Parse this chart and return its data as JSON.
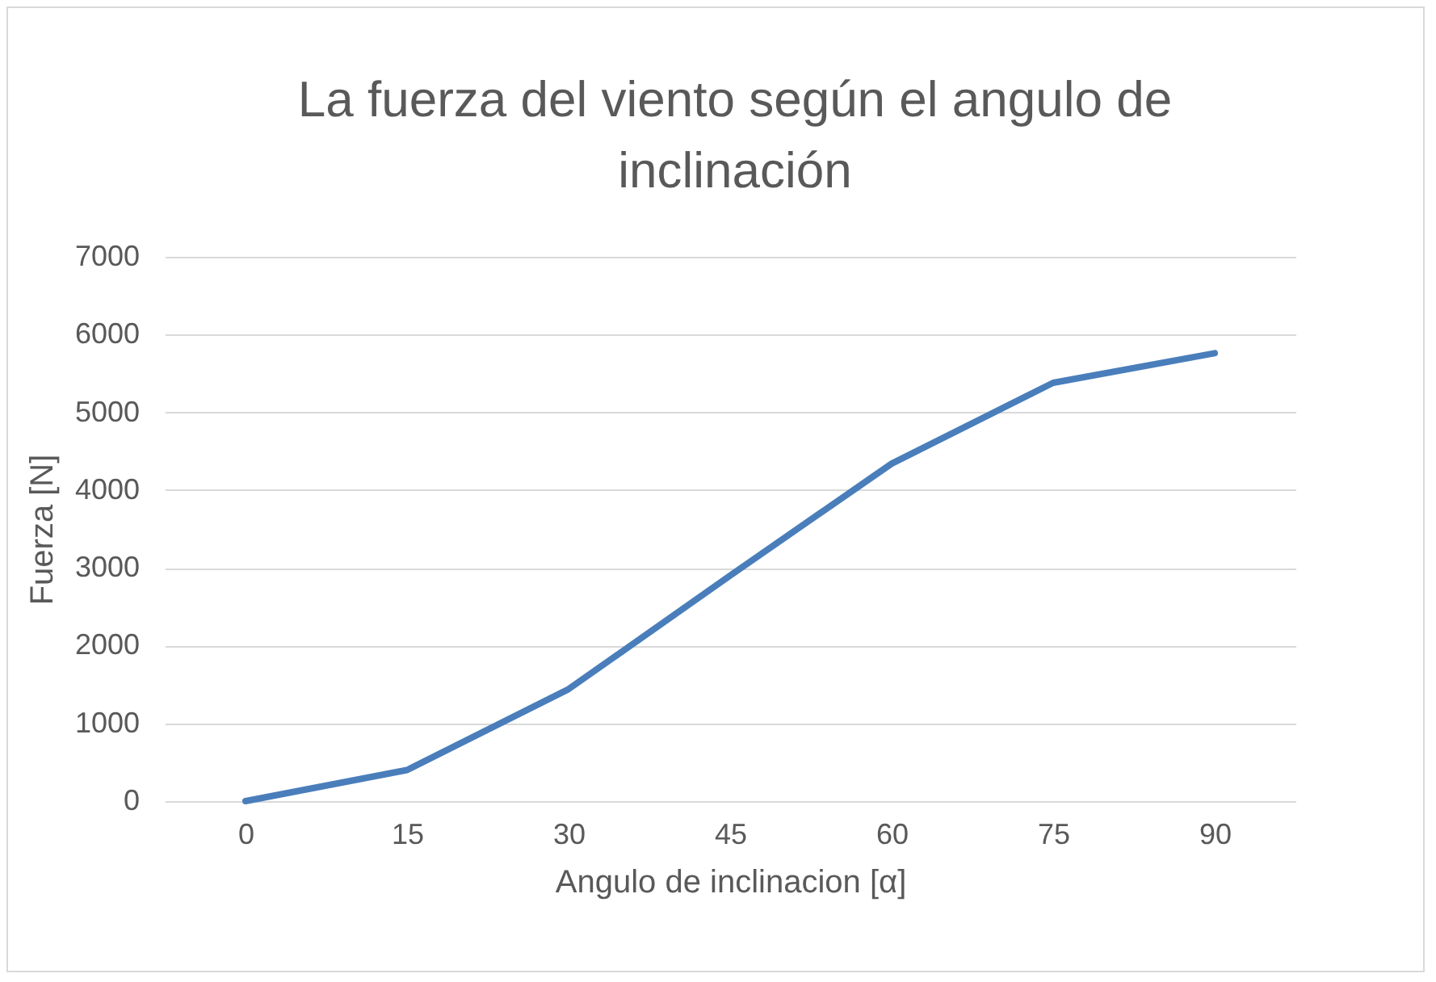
{
  "chart_data": {
    "type": "line",
    "title": "La fuerza del viento según el angulo de inclinación",
    "xlabel": "Angulo de inclinacion [α]",
    "ylabel": "Fuerza [N]",
    "categories": [
      "0",
      "15",
      "30",
      "45",
      "60",
      "75",
      "90"
    ],
    "series": [
      {
        "color": "#4a7ebb",
        "values": [
          0,
          400,
          1440,
          2900,
          4340,
          5380,
          5760
        ]
      }
    ],
    "ylim": [
      0,
      7000
    ],
    "yticks": [
      0,
      1000,
      2000,
      3000,
      4000,
      5000,
      6000,
      7000
    ],
    "grid": "y",
    "marker": "none",
    "line_style": "solid"
  }
}
